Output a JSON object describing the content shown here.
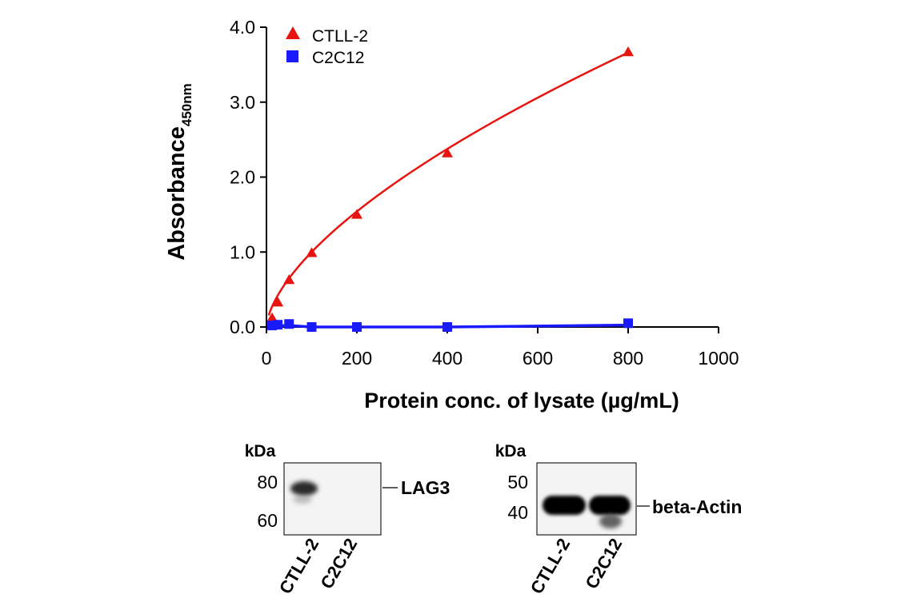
{
  "chart_data": {
    "type": "line",
    "xlabel": "Protein conc. of lysate (µg/mL)",
    "ylabel": "Absorbance",
    "ylabel_sub": "450nm",
    "xlim": [
      0,
      1000
    ],
    "ylim": [
      0,
      4
    ],
    "x_ticks": [
      "0",
      "200",
      "400",
      "600",
      "800",
      "1000"
    ],
    "y_ticks": [
      "0.0",
      "1.0",
      "2.0",
      "3.0",
      "4.0"
    ],
    "legend_position": "top-left",
    "series": [
      {
        "name": "CTLL-2",
        "color": "#e8140f",
        "marker": "triangle",
        "x": [
          12.5,
          25,
          50,
          100,
          200,
          400,
          800
        ],
        "y": [
          0.12,
          0.33,
          0.63,
          0.99,
          1.5,
          2.32,
          3.67
        ]
      },
      {
        "name": "C2C12",
        "color": "#1a1aff",
        "marker": "square",
        "x": [
          12.5,
          25,
          50,
          100,
          200,
          400,
          800
        ],
        "y": [
          0.02,
          0.03,
          0.04,
          0.0,
          0.0,
          0.0,
          0.05
        ]
      }
    ]
  },
  "blots": [
    {
      "kda_label": "kDa",
      "markers": [
        "80",
        "60"
      ],
      "target": "LAG3",
      "lanes": [
        "CTLL-2",
        "C2C12"
      ]
    },
    {
      "kda_label": "kDa",
      "markers": [
        "50",
        "40"
      ],
      "target": "beta-Actin",
      "lanes": [
        "CTLL-2",
        "C2C12"
      ]
    }
  ]
}
